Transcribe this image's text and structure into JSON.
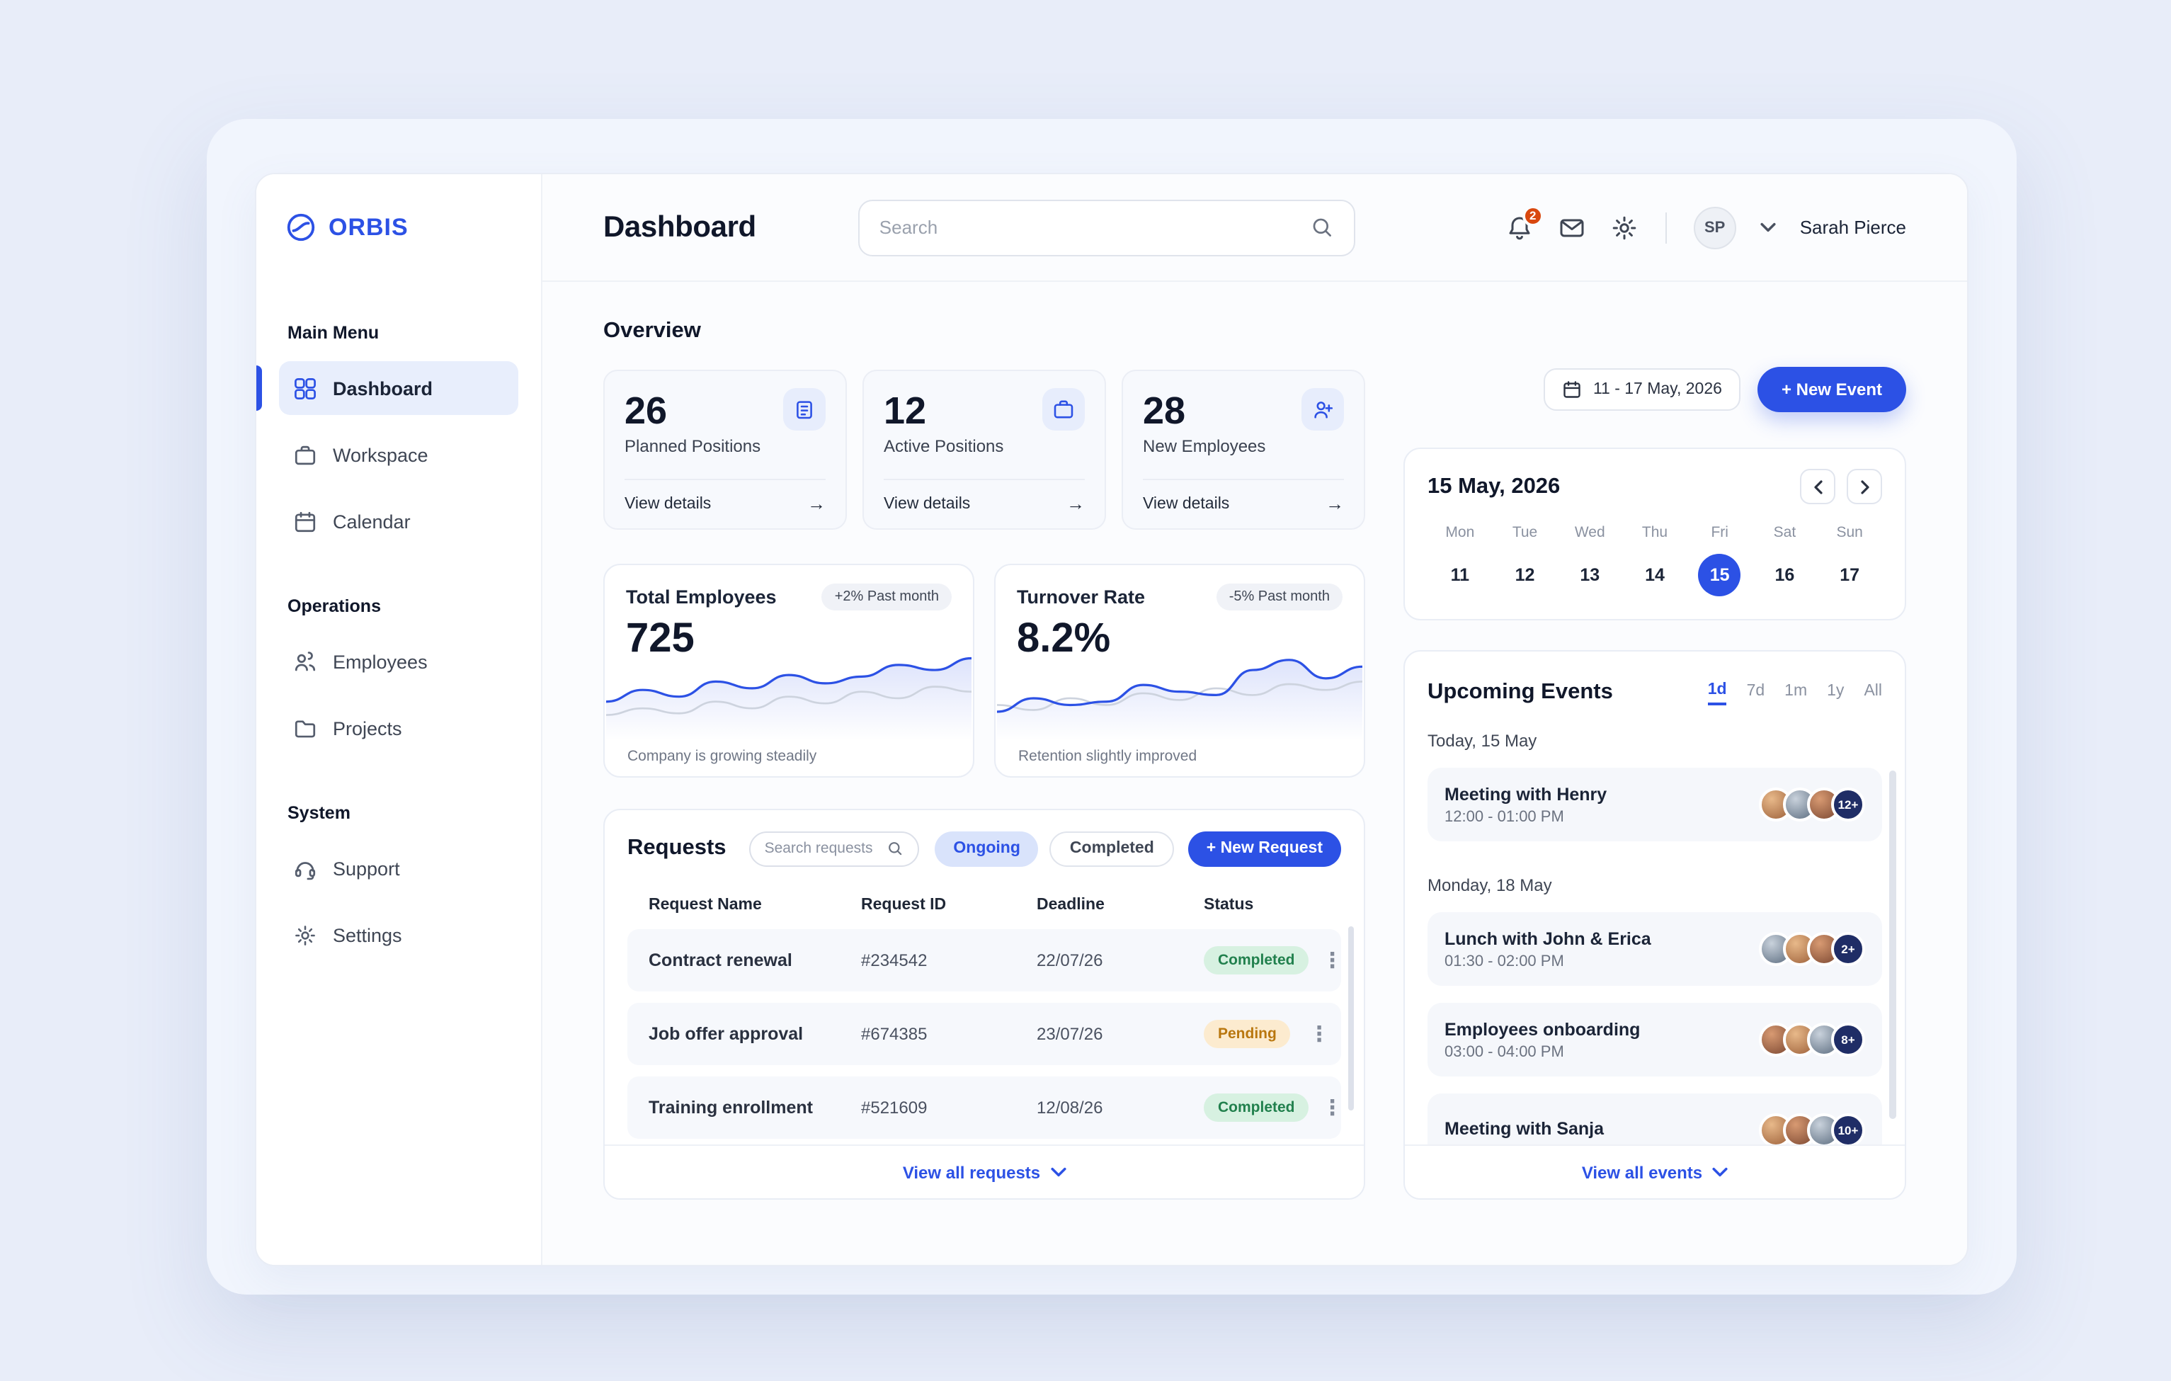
{
  "colors": {
    "accent": "#2c51e5",
    "completed_bg": "#d7f1e1",
    "completed_text": "#21804d",
    "pending_bg": "#fcebcf",
    "pending_text": "#b9770f",
    "notification_badge": "#d9480f"
  },
  "sidebar": {
    "brand": "ORBIS",
    "sections": [
      {
        "label": "Main Menu",
        "items": [
          {
            "label": "Dashboard"
          },
          {
            "label": "Workspace"
          },
          {
            "label": "Calendar"
          }
        ]
      },
      {
        "label": "Operations",
        "items": [
          {
            "label": "Employees"
          },
          {
            "label": "Projects"
          }
        ]
      },
      {
        "label": "System",
        "items": [
          {
            "label": "Support"
          },
          {
            "label": "Settings"
          }
        ]
      }
    ]
  },
  "header": {
    "title": "Dashboard",
    "search_placeholder": "Search",
    "notifications_badge": "2",
    "user_initials": "SP",
    "user_name": "Sarah Pierce"
  },
  "overview": {
    "heading": "Overview",
    "stats": [
      {
        "value": "26",
        "label": "Planned Positions",
        "link": "View details"
      },
      {
        "value": "12",
        "label": "Active Positions",
        "link": "View details"
      },
      {
        "value": "28",
        "label": "New Employees",
        "link": "View details"
      }
    ],
    "metrics": [
      {
        "title": "Total Employees",
        "badge": "+2% Past month",
        "value": "725",
        "footer": "Company is growing steadily",
        "spark_primary": [
          34,
          48,
          40,
          58,
          50,
          66,
          56,
          64,
          78,
          72,
          86
        ],
        "spark_secondary": [
          18,
          26,
          20,
          34,
          26,
          40,
          32,
          46,
          38,
          52,
          46
        ]
      },
      {
        "title": "Turnover Rate",
        "badge": "-5% Past month",
        "value": "8.2%",
        "footer": "Retention slightly improved",
        "spark_primary": [
          22,
          38,
          30,
          34,
          54,
          46,
          42,
          72,
          84,
          62,
          76
        ],
        "spark_secondary": [
          30,
          24,
          38,
          30,
          44,
          36,
          50,
          42,
          55,
          48,
          58
        ]
      }
    ]
  },
  "requests": {
    "title": "Requests",
    "search_placeholder": "Search requests",
    "filter_ongoing": "Ongoing",
    "filter_completed": "Completed",
    "new_request_button": "+ New Request",
    "columns": [
      "Request Name",
      "Request ID",
      "Deadline",
      "Status"
    ],
    "rows": [
      {
        "name": "Contract renewal",
        "id": "#234542",
        "deadline": "22/07/26",
        "status": "Completed"
      },
      {
        "name": "Job offer approval",
        "id": "#674385",
        "deadline": "23/07/26",
        "status": "Pending"
      },
      {
        "name": "Training enrollment",
        "id": "#521609",
        "deadline": "12/08/26",
        "status": "Completed"
      }
    ],
    "view_all": "View all requests"
  },
  "calendar_panel": {
    "date_range": "11 - 17 May, 2026",
    "new_event_button": "+ New Event",
    "title": "15 May, 2026",
    "day_names": [
      "Mon",
      "Tue",
      "Wed",
      "Thu",
      "Fri",
      "Sat",
      "Sun"
    ],
    "dates": [
      "11",
      "12",
      "13",
      "14",
      "15",
      "16",
      "17"
    ],
    "selected_date": "15"
  },
  "events": {
    "title": "Upcoming Events",
    "tabs": [
      "1d",
      "7d",
      "1m",
      "1y",
      "All"
    ],
    "active_tab": "1d",
    "group1_label": "Today, 15 May",
    "group2_label": "Monday, 18 May",
    "items": [
      {
        "title": "Meeting with Henry",
        "time": "12:00 - 01:00 PM",
        "count": "12+"
      },
      {
        "title": "Lunch with John & Erica",
        "time": "01:30 - 02:00 PM",
        "count": "2+"
      },
      {
        "title": "Employees onboarding",
        "time": "03:00 - 04:00 PM",
        "count": "8+"
      },
      {
        "title": "Meeting with Sanja",
        "count": "10+"
      }
    ],
    "view_all": "View all events"
  }
}
